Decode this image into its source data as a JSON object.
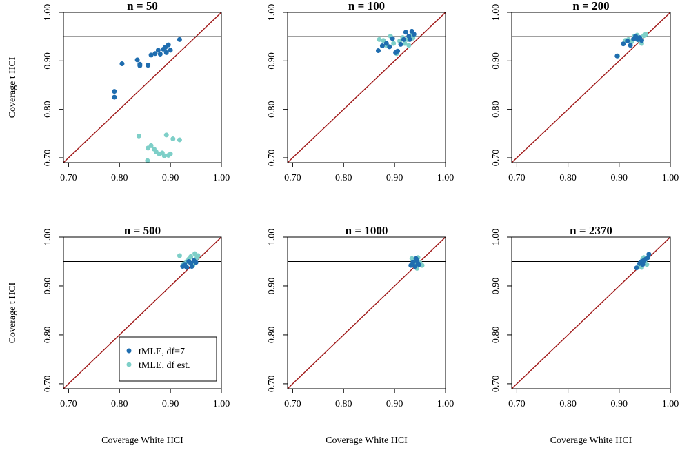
{
  "colors": {
    "df7": "#1F6DAF",
    "dfest": "#7ECFC8",
    "diagonal": "#A01818",
    "reference": "#000000"
  },
  "axis_labels": {
    "x": "Coverage White HCI",
    "y": "Coverage t HCI"
  },
  "legend": {
    "items": [
      {
        "label": "tMLE, df=7",
        "color_key": "df7"
      },
      {
        "label": "tMLE, df est.",
        "color_key": "dfest"
      }
    ]
  },
  "chart_data": [
    {
      "type": "scatter",
      "title": "n = 50",
      "xlim": [
        0.69,
        1.0
      ],
      "ylim": [
        0.69,
        1.0
      ],
      "xticks": [
        "0.70",
        "0.80",
        "0.90",
        "1.00"
      ],
      "yticks": [
        "0.70",
        "0.80",
        "0.90",
        "1.00"
      ],
      "hline": 0.95,
      "series": [
        {
          "name": "tMLE, df=7",
          "color_key": "df7",
          "x": [
            0.79,
            0.79,
            0.805,
            0.835,
            0.84,
            0.84,
            0.856,
            0.862,
            0.87,
            0.876,
            0.88,
            0.886,
            0.89,
            0.892,
            0.896,
            0.9,
            0.918
          ],
          "y": [
            0.825,
            0.837,
            0.894,
            0.902,
            0.893,
            0.89,
            0.891,
            0.912,
            0.915,
            0.922,
            0.914,
            0.924,
            0.928,
            0.917,
            0.933,
            0.922,
            0.944
          ]
        },
        {
          "name": "tMLE, df est.",
          "color_key": "dfest",
          "x": [
            0.838,
            0.856,
            0.862,
            0.868,
            0.872,
            0.878,
            0.884,
            0.888,
            0.892,
            0.896,
            0.9,
            0.905,
            0.918,
            0.855
          ],
          "y": [
            0.745,
            0.72,
            0.725,
            0.718,
            0.712,
            0.708,
            0.71,
            0.704,
            0.747,
            0.705,
            0.708,
            0.739,
            0.737,
            0.694
          ]
        }
      ]
    },
    {
      "type": "scatter",
      "title": "n = 100",
      "xlim": [
        0.69,
        1.0
      ],
      "ylim": [
        0.69,
        1.0
      ],
      "xticks": [
        "0.70",
        "0.80",
        "0.90",
        "1.00"
      ],
      "yticks": [
        "0.70",
        "0.80",
        "0.90",
        "1.00"
      ],
      "hline": 0.95,
      "series": [
        {
          "name": "tMLE, df=7",
          "color_key": "df7",
          "x": [
            0.868,
            0.876,
            0.884,
            0.89,
            0.896,
            0.902,
            0.906,
            0.912,
            0.918,
            0.922,
            0.928,
            0.93,
            0.934,
            0.938
          ],
          "y": [
            0.921,
            0.931,
            0.936,
            0.929,
            0.946,
            0.917,
            0.92,
            0.934,
            0.944,
            0.959,
            0.951,
            0.944,
            0.961,
            0.955
          ]
        },
        {
          "name": "tMLE, df est.",
          "color_key": "dfest",
          "x": [
            0.87,
            0.878,
            0.885,
            0.892,
            0.898,
            0.904,
            0.91,
            0.916,
            0.92,
            0.926,
            0.93,
            0.934,
            0.936,
            0.938,
            0.928
          ],
          "y": [
            0.944,
            0.942,
            0.931,
            0.951,
            0.936,
            0.915,
            0.941,
            0.948,
            0.936,
            0.944,
            0.951,
            0.958,
            0.947,
            0.954,
            0.932
          ]
        }
      ]
    },
    {
      "type": "scatter",
      "title": "n = 200",
      "xlim": [
        0.69,
        1.0
      ],
      "ylim": [
        0.69,
        1.0
      ],
      "xticks": [
        "0.70",
        "0.80",
        "0.90",
        "1.00"
      ],
      "yticks": [
        "0.70",
        "0.80",
        "0.90",
        "1.00"
      ],
      "hline": 0.95,
      "series": [
        {
          "name": "tMLE, df=7",
          "color_key": "df7",
          "x": [
            0.896,
            0.908,
            0.916,
            0.922,
            0.928,
            0.932,
            0.936,
            0.94,
            0.944
          ],
          "y": [
            0.91,
            0.935,
            0.941,
            0.932,
            0.945,
            0.951,
            0.944,
            0.948,
            0.942
          ]
        },
        {
          "name": "tMLE, df est.",
          "color_key": "dfest",
          "x": [
            0.897,
            0.912,
            0.918,
            0.924,
            0.93,
            0.935,
            0.94,
            0.944,
            0.948,
            0.952,
            0.938
          ],
          "y": [
            0.91,
            0.942,
            0.944,
            0.939,
            0.951,
            0.953,
            0.947,
            0.936,
            0.952,
            0.955,
            0.943
          ]
        }
      ]
    },
    {
      "type": "scatter",
      "title": "n = 500",
      "xlim": [
        0.69,
        1.0
      ],
      "ylim": [
        0.69,
        1.0
      ],
      "xticks": [
        "0.70",
        "0.80",
        "0.90",
        "1.00"
      ],
      "yticks": [
        "0.70",
        "0.80",
        "0.90",
        "1.00"
      ],
      "hline": 0.95,
      "series": [
        {
          "name": "tMLE, df=7",
          "color_key": "df7",
          "x": [
            0.924,
            0.928,
            0.932,
            0.936,
            0.94,
            0.942,
            0.946,
            0.95
          ],
          "y": [
            0.94,
            0.944,
            0.938,
            0.95,
            0.946,
            0.94,
            0.952,
            0.948
          ]
        },
        {
          "name": "tMLE, df est.",
          "color_key": "dfest",
          "x": [
            0.918,
            0.926,
            0.932,
            0.936,
            0.94,
            0.944,
            0.948,
            0.952,
            0.954,
            0.946
          ],
          "y": [
            0.962,
            0.945,
            0.95,
            0.955,
            0.96,
            0.942,
            0.966,
            0.958,
            0.962,
            0.948
          ]
        }
      ]
    },
    {
      "type": "scatter",
      "title": "n = 1000",
      "xlim": [
        0.69,
        1.0
      ],
      "ylim": [
        0.69,
        1.0
      ],
      "xticks": [
        "0.70",
        "0.80",
        "0.90",
        "1.00"
      ],
      "yticks": [
        "0.70",
        "0.80",
        "0.90",
        "1.00"
      ],
      "hline": 0.95,
      "series": [
        {
          "name": "tMLE, df=7",
          "color_key": "df7",
          "x": [
            0.932,
            0.936,
            0.94,
            0.944,
            0.946,
            0.948,
            0.942
          ],
          "y": [
            0.942,
            0.948,
            0.94,
            0.952,
            0.946,
            0.944,
            0.956
          ]
        },
        {
          "name": "tMLE, df est.",
          "color_key": "dfest",
          "x": [
            0.934,
            0.938,
            0.942,
            0.946,
            0.95,
            0.954,
            0.944,
            0.936
          ],
          "y": [
            0.956,
            0.944,
            0.95,
            0.958,
            0.947,
            0.942,
            0.936,
            0.952
          ]
        }
      ]
    },
    {
      "type": "scatter",
      "title": "n = 2370",
      "xlim": [
        0.69,
        1.0
      ],
      "ylim": [
        0.69,
        1.0
      ],
      "xticks": [
        "0.70",
        "0.80",
        "0.90",
        "1.00"
      ],
      "yticks": [
        "0.70",
        "0.80",
        "0.90",
        "1.00"
      ],
      "hline": 0.95,
      "series": [
        {
          "name": "tMLE, df=7",
          "color_key": "df7",
          "x": [
            0.934,
            0.94,
            0.944,
            0.948,
            0.952,
            0.956,
            0.958,
            0.946
          ],
          "y": [
            0.937,
            0.946,
            0.95,
            0.952,
            0.955,
            0.958,
            0.965,
            0.944
          ]
        },
        {
          "name": "tMLE, df est.",
          "color_key": "dfest",
          "x": [
            0.938,
            0.942,
            0.946,
            0.95,
            0.954,
            0.944,
            0.948
          ],
          "y": [
            0.94,
            0.948,
            0.955,
            0.95,
            0.944,
            0.938,
            0.958
          ]
        }
      ]
    }
  ]
}
